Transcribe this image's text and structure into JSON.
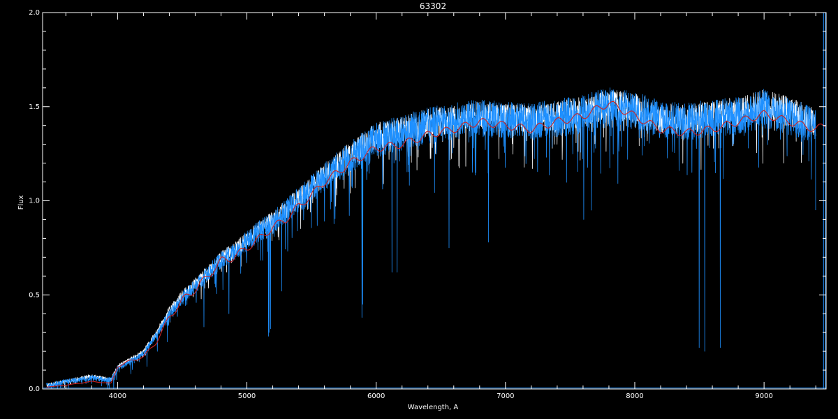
{
  "chart_data": {
    "type": "line",
    "title": "63302",
    "xlabel": "Wavelength, A",
    "ylabel": "Flux",
    "xlim": [
      3420,
      9480
    ],
    "ylim": [
      0.0,
      2.0
    ],
    "x_ticks": [
      4000,
      5000,
      6000,
      7000,
      8000,
      9000
    ],
    "x_tick_labels": [
      "4000",
      "5000",
      "6000",
      "7000",
      "8000",
      "9000"
    ],
    "y_ticks": [
      0.0,
      0.5,
      1.0,
      1.5,
      2.0
    ],
    "y_tick_labels": [
      "0.0",
      "0.5",
      "1.0",
      "1.5",
      "2.0"
    ],
    "grid": false,
    "colors": {
      "background": "#000000",
      "axes": "#ffffff",
      "observed": "#ffffff",
      "model": "#1e90ff",
      "smoothed": "#cc2222"
    },
    "series": [
      {
        "key": "observed",
        "x": [
          3450,
          3600,
          3800,
          3950,
          4000,
          4100,
          4200,
          4300,
          4400,
          4500,
          4600,
          4700,
          4800,
          4900,
          5000,
          5100,
          5200,
          5300,
          5400,
          5500,
          5600,
          5700,
          5800,
          5900,
          6000,
          6200,
          6400,
          6600,
          6800,
          7000,
          7200,
          7400,
          7600,
          7800,
          8000,
          8200,
          8400,
          8600,
          8800,
          9000,
          9200,
          9400
        ],
        "y": [
          0.02,
          0.04,
          0.07,
          0.05,
          0.12,
          0.16,
          0.2,
          0.3,
          0.42,
          0.5,
          0.56,
          0.63,
          0.7,
          0.74,
          0.8,
          0.86,
          0.9,
          0.96,
          1.02,
          1.08,
          1.14,
          1.2,
          1.25,
          1.3,
          1.35,
          1.38,
          1.42,
          1.44,
          1.46,
          1.45,
          1.44,
          1.46,
          1.48,
          1.52,
          1.5,
          1.45,
          1.44,
          1.46,
          1.48,
          1.52,
          1.48,
          1.42
        ]
      },
      {
        "key": "model",
        "x": [
          3450,
          3600,
          3800,
          3950,
          4000,
          4100,
          4200,
          4300,
          4400,
          4500,
          4600,
          4700,
          4800,
          4900,
          5000,
          5100,
          5200,
          5300,
          5400,
          5500,
          5600,
          5700,
          5800,
          5900,
          6000,
          6200,
          6400,
          6600,
          6800,
          7000,
          7200,
          7400,
          7600,
          7800,
          8000,
          8200,
          8400,
          8600,
          8800,
          9000,
          9200,
          9400
        ],
        "y": [
          0.02,
          0.04,
          0.06,
          0.05,
          0.11,
          0.15,
          0.19,
          0.29,
          0.4,
          0.49,
          0.55,
          0.62,
          0.69,
          0.73,
          0.79,
          0.85,
          0.89,
          0.95,
          1.01,
          1.07,
          1.13,
          1.19,
          1.24,
          1.29,
          1.33,
          1.37,
          1.41,
          1.43,
          1.45,
          1.44,
          1.43,
          1.45,
          1.47,
          1.51,
          1.49,
          1.44,
          1.43,
          1.45,
          1.46,
          1.5,
          1.46,
          1.4
        ]
      },
      {
        "key": "smoothed",
        "x": [
          3450,
          3600,
          3800,
          3950,
          4000,
          4100,
          4200,
          4300,
          4400,
          4500,
          4600,
          4700,
          4800,
          4900,
          5000,
          5100,
          5200,
          5300,
          5400,
          5500,
          5600,
          5700,
          5800,
          5900,
          6000,
          6200,
          6400,
          6600,
          6800,
          7000,
          7200,
          7400,
          7600,
          7800,
          8000,
          8200,
          8400,
          8600,
          8800,
          9000,
          9200,
          9400,
          9480
        ],
        "y": [
          0.01,
          0.02,
          0.04,
          0.03,
          0.12,
          0.15,
          0.17,
          0.25,
          0.38,
          0.47,
          0.53,
          0.6,
          0.68,
          0.7,
          0.75,
          0.8,
          0.86,
          0.9,
          0.97,
          1.03,
          1.1,
          1.15,
          1.2,
          1.24,
          1.28,
          1.3,
          1.35,
          1.38,
          1.42,
          1.4,
          1.38,
          1.42,
          1.45,
          1.52,
          1.45,
          1.38,
          1.36,
          1.38,
          1.42,
          1.46,
          1.42,
          1.38,
          1.4
        ]
      }
    ],
    "detail": {
      "observed": {
        "noise": 0.07,
        "dips": []
      },
      "model": {
        "noise": 0.09,
        "dips": [
          {
            "x": 3935,
            "y": 0.0
          },
          {
            "x": 3970,
            "y": 0.0
          },
          {
            "x": 4102,
            "y": 0.08
          },
          {
            "x": 4227,
            "y": 0.12
          },
          {
            "x": 4308,
            "y": 0.2
          },
          {
            "x": 4384,
            "y": 0.25
          },
          {
            "x": 4668,
            "y": 0.33
          },
          {
            "x": 4861,
            "y": 0.4
          },
          {
            "x": 5167,
            "y": 0.28
          },
          {
            "x": 5172,
            "y": 0.3
          },
          {
            "x": 5183,
            "y": 0.32
          },
          {
            "x": 5270,
            "y": 0.52
          },
          {
            "x": 5890,
            "y": 0.38
          },
          {
            "x": 5896,
            "y": 0.45
          },
          {
            "x": 6122,
            "y": 0.62
          },
          {
            "x": 6162,
            "y": 0.62
          },
          {
            "x": 6563,
            "y": 0.75
          },
          {
            "x": 6870,
            "y": 0.78
          },
          {
            "x": 7605,
            "y": 0.9
          },
          {
            "x": 7665,
            "y": 0.95
          },
          {
            "x": 8498,
            "y": 0.22
          },
          {
            "x": 8542,
            "y": 0.2
          },
          {
            "x": 8662,
            "y": 0.22
          },
          {
            "x": 9400,
            "y": 0.95
          }
        ]
      },
      "smoothed": {
        "noise": 0.0,
        "dips": []
      }
    },
    "edge_lines": [
      {
        "x": 9460,
        "color": "#1e90ff"
      },
      {
        "x": 9475,
        "color": "#1e90ff"
      }
    ]
  }
}
